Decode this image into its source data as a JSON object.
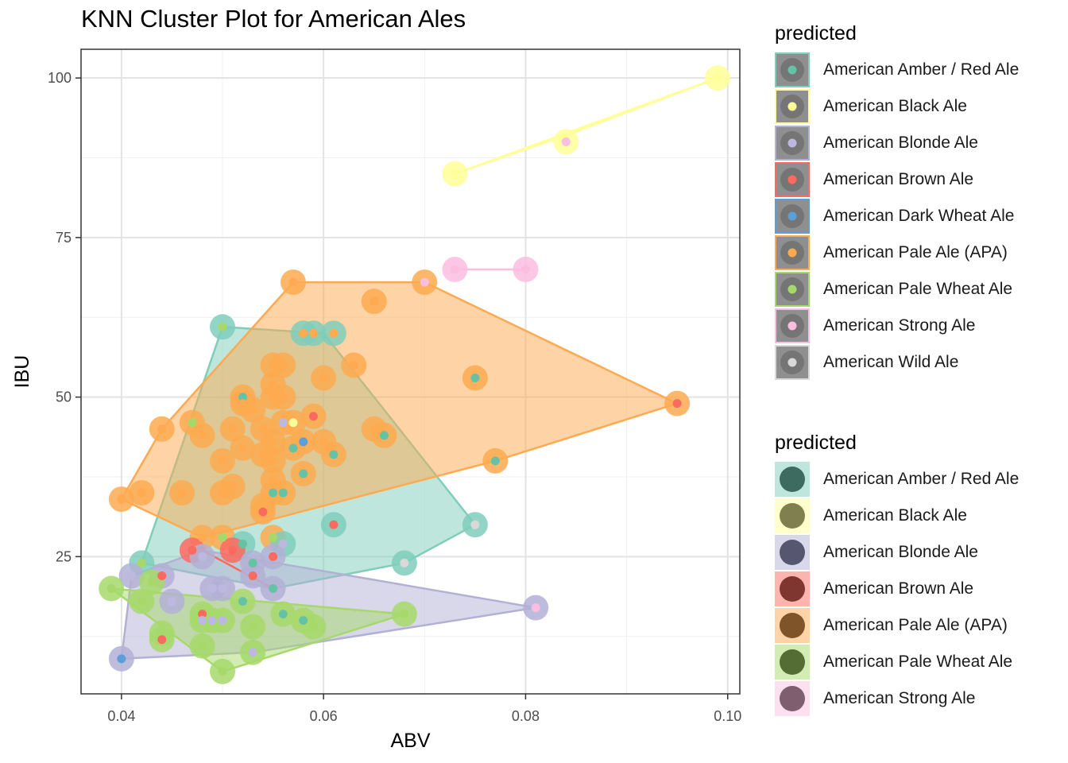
{
  "chart_data": {
    "type": "scatter",
    "title": "KNN Cluster Plot for American Ales",
    "xlabel": "ABV",
    "ylabel": "IBU",
    "xlim": [
      0.036,
      0.1012
    ],
    "ylim": [
      3.5,
      104.5
    ],
    "x_ticks": [
      0.04,
      0.06,
      0.08,
      0.1
    ],
    "x_tick_labels": [
      "0.04",
      "0.06",
      "0.08",
      "0.10"
    ],
    "y_ticks": [
      25,
      50,
      75,
      100
    ],
    "y_tick_labels": [
      "25",
      "50",
      "75",
      "100"
    ],
    "grid": true,
    "legend_position": "right",
    "predicted_classes": [
      {
        "name": "American Amber / Red Ale",
        "color": "#7fcdbb",
        "hull": [
          [
            0.042,
            24
          ],
          [
            0.05,
            61
          ],
          [
            0.06,
            60
          ],
          [
            0.075,
            30
          ],
          [
            0.068,
            24
          ],
          [
            0.055,
            20
          ]
        ]
      },
      {
        "name": "American Black Ale",
        "color": "#ffff99",
        "hull": [
          [
            0.073,
            85
          ],
          [
            0.099,
            100
          ],
          [
            0.084,
            91
          ]
        ]
      },
      {
        "name": "American Blonde Ale",
        "color": "#b3b0d6",
        "hull": [
          [
            0.04,
            9
          ],
          [
            0.041,
            22
          ],
          [
            0.048,
            26
          ],
          [
            0.081,
            17
          ],
          [
            0.053,
            10
          ]
        ]
      },
      {
        "name": "American Brown Ale",
        "color": "#fb6a5f",
        "hull": [
          [
            0.048,
            26
          ],
          [
            0.055,
            20
          ]
        ]
      },
      {
        "name": "American Pale Ale (APA)",
        "color": "#fdaa50",
        "hull": [
          [
            0.04,
            34
          ],
          [
            0.044,
            45
          ],
          [
            0.057,
            68
          ],
          [
            0.07,
            68
          ],
          [
            0.095,
            49
          ],
          [
            0.077,
            40
          ],
          [
            0.048,
            28
          ]
        ]
      },
      {
        "name": "American Pale Wheat Ale",
        "color": "#a6d96a",
        "hull": [
          [
            0.039,
            20
          ],
          [
            0.05,
            7
          ],
          [
            0.068,
            16
          ]
        ]
      },
      {
        "name": "American Strong Ale",
        "color": "#fbbde0",
        "hull": [
          [
            0.073,
            70
          ],
          [
            0.08,
            70
          ]
        ]
      }
    ],
    "actual_styles": [
      {
        "name": "American Amber / Red Ale",
        "color": "#66c2a5"
      },
      {
        "name": "American Black Ale",
        "color": "#ffff99"
      },
      {
        "name": "American Blonde Ale",
        "color": "#bcb8e0"
      },
      {
        "name": "American Brown Ale",
        "color": "#fb6a5f"
      },
      {
        "name": "American Dark Wheat Ale",
        "color": "#5b9fd8"
      },
      {
        "name": "American Pale Ale (APA)",
        "color": "#fdaa50"
      },
      {
        "name": "American Pale Wheat Ale",
        "color": "#a6d96a"
      },
      {
        "name": "American Strong Ale",
        "color": "#fbbde0"
      },
      {
        "name": "American Wild Ale",
        "color": "#d9d9d9"
      }
    ],
    "points": [
      {
        "x": 0.099,
        "y": 100,
        "p": 1,
        "a": 1
      },
      {
        "x": 0.084,
        "y": 90,
        "p": 1,
        "a": 7
      },
      {
        "x": 0.073,
        "y": 85,
        "p": 1,
        "a": 1
      },
      {
        "x": 0.073,
        "y": 70,
        "p": 6,
        "a": 7
      },
      {
        "x": 0.08,
        "y": 70,
        "p": 6,
        "a": 7
      },
      {
        "x": 0.057,
        "y": 68,
        "p": 4,
        "a": 5
      },
      {
        "x": 0.07,
        "y": 68,
        "p": 4,
        "a": 7
      },
      {
        "x": 0.065,
        "y": 65,
        "p": 4,
        "a": 5
      },
      {
        "x": 0.05,
        "y": 61,
        "p": 0,
        "a": 6
      },
      {
        "x": 0.058,
        "y": 60,
        "p": 0,
        "a": 5
      },
      {
        "x": 0.059,
        "y": 60,
        "p": 0,
        "a": 5
      },
      {
        "x": 0.061,
        "y": 60,
        "p": 0,
        "a": 5
      },
      {
        "x": 0.063,
        "y": 55,
        "p": 4,
        "a": 5
      },
      {
        "x": 0.055,
        "y": 55,
        "p": 4,
        "a": 5
      },
      {
        "x": 0.056,
        "y": 55,
        "p": 4,
        "a": 5
      },
      {
        "x": 0.075,
        "y": 53,
        "p": 4,
        "a": 0
      },
      {
        "x": 0.06,
        "y": 53,
        "p": 4,
        "a": 5
      },
      {
        "x": 0.055,
        "y": 52,
        "p": 4,
        "a": 5
      },
      {
        "x": 0.052,
        "y": 50,
        "p": 4,
        "a": 0
      },
      {
        "x": 0.055,
        "y": 50,
        "p": 4,
        "a": 5
      },
      {
        "x": 0.056,
        "y": 50,
        "p": 4,
        "a": 5
      },
      {
        "x": 0.052,
        "y": 49,
        "p": 4,
        "a": 5
      },
      {
        "x": 0.095,
        "y": 49,
        "p": 4,
        "a": 3
      },
      {
        "x": 0.053,
        "y": 48,
        "p": 4,
        "a": 5
      },
      {
        "x": 0.059,
        "y": 47,
        "p": 4,
        "a": 3
      },
      {
        "x": 0.047,
        "y": 46,
        "p": 4,
        "a": 6
      },
      {
        "x": 0.056,
        "y": 46,
        "p": 4,
        "a": 2
      },
      {
        "x": 0.057,
        "y": 46,
        "p": 4,
        "a": 1
      },
      {
        "x": 0.044,
        "y": 45,
        "p": 4,
        "a": 5
      },
      {
        "x": 0.051,
        "y": 45,
        "p": 4,
        "a": 5
      },
      {
        "x": 0.054,
        "y": 45,
        "p": 4,
        "a": 5
      },
      {
        "x": 0.065,
        "y": 45,
        "p": 4,
        "a": 5
      },
      {
        "x": 0.048,
        "y": 44,
        "p": 4,
        "a": 5
      },
      {
        "x": 0.066,
        "y": 44,
        "p": 4,
        "a": 0
      },
      {
        "x": 0.055,
        "y": 43,
        "p": 4,
        "a": 5
      },
      {
        "x": 0.058,
        "y": 43,
        "p": 4,
        "a": 4
      },
      {
        "x": 0.06,
        "y": 43,
        "p": 4,
        "a": 5
      },
      {
        "x": 0.052,
        "y": 42,
        "p": 4,
        "a": 5
      },
      {
        "x": 0.057,
        "y": 42,
        "p": 4,
        "a": 0
      },
      {
        "x": 0.054,
        "y": 41,
        "p": 4,
        "a": 5
      },
      {
        "x": 0.061,
        "y": 41,
        "p": 4,
        "a": 0
      },
      {
        "x": 0.05,
        "y": 40,
        "p": 4,
        "a": 5
      },
      {
        "x": 0.055,
        "y": 40,
        "p": 4,
        "a": 5
      },
      {
        "x": 0.077,
        "y": 40,
        "p": 4,
        "a": 0
      },
      {
        "x": 0.058,
        "y": 38,
        "p": 4,
        "a": 0
      },
      {
        "x": 0.055,
        "y": 37,
        "p": 4,
        "a": 5
      },
      {
        "x": 0.051,
        "y": 36,
        "p": 4,
        "a": 5
      },
      {
        "x": 0.04,
        "y": 34,
        "p": 4,
        "a": 5
      },
      {
        "x": 0.042,
        "y": 35,
        "p": 4,
        "a": 5
      },
      {
        "x": 0.046,
        "y": 35,
        "p": 4,
        "a": 5
      },
      {
        "x": 0.05,
        "y": 35,
        "p": 4,
        "a": 5
      },
      {
        "x": 0.055,
        "y": 35,
        "p": 4,
        "a": 0
      },
      {
        "x": 0.056,
        "y": 35,
        "p": 4,
        "a": 0
      },
      {
        "x": 0.054,
        "y": 33,
        "p": 4,
        "a": 5
      },
      {
        "x": 0.054,
        "y": 32,
        "p": 4,
        "a": 3
      },
      {
        "x": 0.061,
        "y": 30,
        "p": 0,
        "a": 3
      },
      {
        "x": 0.075,
        "y": 30,
        "p": 0,
        "a": 8
      },
      {
        "x": 0.048,
        "y": 28,
        "p": 4,
        "a": 5
      },
      {
        "x": 0.05,
        "y": 28,
        "p": 4,
        "a": 6
      },
      {
        "x": 0.055,
        "y": 28,
        "p": 4,
        "a": 6
      },
      {
        "x": 0.052,
        "y": 27,
        "p": 0,
        "a": 0
      },
      {
        "x": 0.056,
        "y": 27,
        "p": 0,
        "a": 2
      },
      {
        "x": 0.047,
        "y": 26,
        "p": 3,
        "a": 3
      },
      {
        "x": 0.051,
        "y": 26,
        "p": 3,
        "a": 3
      },
      {
        "x": 0.048,
        "y": 25,
        "p": 2,
        "a": 2
      },
      {
        "x": 0.055,
        "y": 25,
        "p": 2,
        "a": 3
      },
      {
        "x": 0.053,
        "y": 24,
        "p": 2,
        "a": 0
      },
      {
        "x": 0.042,
        "y": 24,
        "p": 0,
        "a": 6
      },
      {
        "x": 0.068,
        "y": 24,
        "p": 0,
        "a": 8
      },
      {
        "x": 0.041,
        "y": 22,
        "p": 2,
        "a": 2
      },
      {
        "x": 0.044,
        "y": 22,
        "p": 2,
        "a": 3
      },
      {
        "x": 0.053,
        "y": 22,
        "p": 2,
        "a": 3
      },
      {
        "x": 0.055,
        "y": 20,
        "p": 2,
        "a": 0
      },
      {
        "x": 0.049,
        "y": 20,
        "p": 2,
        "a": 2
      },
      {
        "x": 0.05,
        "y": 20,
        "p": 2,
        "a": 2
      },
      {
        "x": 0.043,
        "y": 21,
        "p": 5,
        "a": 6
      },
      {
        "x": 0.039,
        "y": 20,
        "p": 5,
        "a": 6
      },
      {
        "x": 0.045,
        "y": 18,
        "p": 2,
        "a": 2
      },
      {
        "x": 0.042,
        "y": 18,
        "p": 5,
        "a": 6
      },
      {
        "x": 0.052,
        "y": 18,
        "p": 5,
        "a": 0
      },
      {
        "x": 0.081,
        "y": 17,
        "p": 2,
        "a": 7
      },
      {
        "x": 0.056,
        "y": 16,
        "p": 5,
        "a": 0
      },
      {
        "x": 0.068,
        "y": 16,
        "p": 5,
        "a": 6
      },
      {
        "x": 0.048,
        "y": 16,
        "p": 5,
        "a": 3
      },
      {
        "x": 0.048,
        "y": 15,
        "p": 5,
        "a": 2
      },
      {
        "x": 0.049,
        "y": 15,
        "p": 5,
        "a": 2
      },
      {
        "x": 0.05,
        "y": 15,
        "p": 5,
        "a": 2
      },
      {
        "x": 0.058,
        "y": 15,
        "p": 5,
        "a": 0
      },
      {
        "x": 0.059,
        "y": 14,
        "p": 5,
        "a": 6
      },
      {
        "x": 0.053,
        "y": 14,
        "p": 5,
        "a": 6
      },
      {
        "x": 0.044,
        "y": 13,
        "p": 5,
        "a": 6
      },
      {
        "x": 0.044,
        "y": 12,
        "p": 5,
        "a": 3
      },
      {
        "x": 0.048,
        "y": 11,
        "p": 5,
        "a": 6
      },
      {
        "x": 0.053,
        "y": 10,
        "p": 5,
        "a": 2
      },
      {
        "x": 0.04,
        "y": 9,
        "p": 2,
        "a": 4
      },
      {
        "x": 0.05,
        "y": 7,
        "p": 5,
        "a": 6
      }
    ]
  },
  "legend_top": {
    "title": "predicted",
    "items": [
      {
        "label": "American Amber / Red Ale",
        "key_fill": "#8f8f8f",
        "border": "#7fcdbb",
        "dot": "#66c2a5"
      },
      {
        "label": "American Black Ale",
        "key_fill": "#8f8f8f",
        "border": "#ffff99",
        "dot": "#ffff99"
      },
      {
        "label": "American Blonde Ale",
        "key_fill": "#8f8f8f",
        "border": "#b3b0d6",
        "dot": "#bcb8e0"
      },
      {
        "label": "American Brown Ale",
        "key_fill": "#8f8f8f",
        "border": "#fb6a5f",
        "dot": "#fb6a5f"
      },
      {
        "label": "American Dark Wheat Ale",
        "key_fill": "#8f8f8f",
        "border": "#5b9fd8",
        "dot": "#5b9fd8"
      },
      {
        "label": "American Pale Ale (APA)",
        "key_fill": "#8f8f8f",
        "border": "#fdaa50",
        "dot": "#fdaa50"
      },
      {
        "label": "American Pale Wheat Ale",
        "key_fill": "#8f8f8f",
        "border": "#a6d96a",
        "dot": "#a6d96a"
      },
      {
        "label": "American Strong Ale",
        "key_fill": "#8f8f8f",
        "border": "#fbbde0",
        "dot": "#fbbde0"
      },
      {
        "label": "American Wild Ale",
        "key_fill": "#8f8f8f",
        "border": "#d9d9d9",
        "dot": "#d9d9d9"
      }
    ]
  },
  "legend_bottom": {
    "title": "predicted",
    "items": [
      {
        "label": "American Amber / Red Ale",
        "key_fill": "#bfe6dd",
        "dot": "#3e6b5f"
      },
      {
        "label": "American Black Ale",
        "key_fill": "#ffffcc",
        "dot": "#7f7f50"
      },
      {
        "label": "American Blonde Ale",
        "key_fill": "#d9d7ea",
        "dot": "#575670"
      },
      {
        "label": "American Brown Ale",
        "key_fill": "#fdb4ae",
        "dot": "#7f3530"
      },
      {
        "label": "American Pale Ale (APA)",
        "key_fill": "#fed4a7",
        "dot": "#7f5428"
      },
      {
        "label": "American Pale Wheat Ale",
        "key_fill": "#d3ecb4",
        "dot": "#536d35"
      },
      {
        "label": "American Strong Ale",
        "key_fill": "#fde0ef",
        "dot": "#7e5e6f"
      }
    ]
  }
}
